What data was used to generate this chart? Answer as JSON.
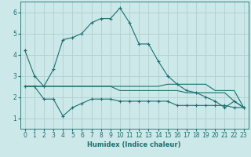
{
  "xlabel": "Humidex (Indice chaleur)",
  "xlim": [
    -0.5,
    23.5
  ],
  "ylim": [
    0.5,
    6.5
  ],
  "yticks": [
    1,
    2,
    3,
    4,
    5,
    6
  ],
  "xticks": [
    0,
    1,
    2,
    3,
    4,
    5,
    6,
    7,
    8,
    9,
    10,
    11,
    12,
    13,
    14,
    15,
    16,
    17,
    18,
    19,
    20,
    21,
    22,
    23
  ],
  "bg_color": "#cce8e8",
  "line_color": "#1a7070",
  "grid_color": "#b0d0d0",
  "lines": [
    {
      "x": [
        0,
        1,
        2,
        3,
        4,
        5,
        6,
        7,
        8,
        9,
        10,
        11,
        12,
        13,
        14,
        15,
        16,
        17,
        18,
        19,
        20,
        21,
        22,
        23
      ],
      "y": [
        4.2,
        3.0,
        2.5,
        3.3,
        4.7,
        4.8,
        5.0,
        5.5,
        5.7,
        5.7,
        6.2,
        5.5,
        4.5,
        4.5,
        3.7,
        3.0,
        2.6,
        2.3,
        2.2,
        2.0,
        1.8,
        1.5,
        1.8,
        1.5
      ],
      "marker": "+"
    },
    {
      "x": [
        0,
        1,
        2,
        3,
        4,
        5,
        6,
        7,
        8,
        9,
        10,
        11,
        12,
        13,
        14,
        15,
        16,
        17,
        18,
        19,
        20,
        21,
        22,
        23
      ],
      "y": [
        2.5,
        2.5,
        2.5,
        2.5,
        2.5,
        2.5,
        2.5,
        2.5,
        2.5,
        2.5,
        2.5,
        2.5,
        2.5,
        2.5,
        2.5,
        2.6,
        2.6,
        2.6,
        2.6,
        2.6,
        2.3,
        2.3,
        2.3,
        1.5
      ],
      "marker": null
    },
    {
      "x": [
        0,
        1,
        2,
        3,
        4,
        5,
        6,
        7,
        8,
        9,
        10,
        11,
        12,
        13,
        14,
        15,
        16,
        17,
        18,
        19,
        20,
        21,
        22,
        23
      ],
      "y": [
        2.5,
        2.5,
        2.5,
        2.5,
        2.5,
        2.5,
        2.5,
        2.5,
        2.5,
        2.5,
        2.3,
        2.3,
        2.3,
        2.3,
        2.3,
        2.3,
        2.3,
        2.2,
        2.2,
        2.2,
        2.2,
        2.2,
        1.8,
        1.5
      ],
      "marker": null
    },
    {
      "x": [
        0,
        1,
        2,
        3,
        4,
        5,
        6,
        7,
        8,
        9,
        10,
        11,
        12,
        13,
        14,
        15,
        16,
        17,
        18,
        19,
        20,
        21,
        22,
        23
      ],
      "y": [
        2.5,
        2.5,
        1.9,
        1.9,
        1.1,
        1.5,
        1.7,
        1.9,
        1.9,
        1.9,
        1.8,
        1.8,
        1.8,
        1.8,
        1.8,
        1.8,
        1.6,
        1.6,
        1.6,
        1.6,
        1.6,
        1.6,
        1.5,
        1.5
      ],
      "marker": "+"
    }
  ]
}
